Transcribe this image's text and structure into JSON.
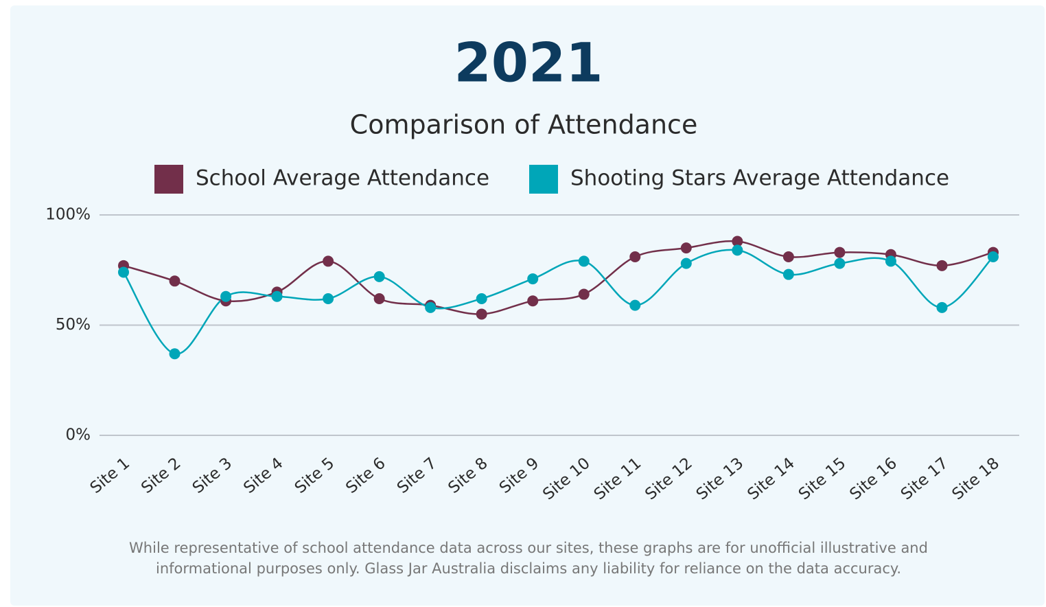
{
  "chart_data": {
    "type": "line",
    "title": "2021",
    "subtitle": "Comparison of Attendance",
    "categories": [
      "Site 1",
      "Site 2",
      "Site 3",
      "Site 4",
      "Site 5",
      "Site 6",
      "Site 7",
      "Site 8",
      "Site 9",
      "Site 10",
      "Site 11",
      "Site 12",
      "Site 13",
      "Site 14",
      "Site 15",
      "Site 16",
      "Site 17",
      "Site 18"
    ],
    "series": [
      {
        "name": "School Average Attendance",
        "color": "#722f4a",
        "values": [
          77,
          70,
          61,
          65,
          79,
          62,
          59,
          55,
          61,
          64,
          81,
          85,
          88,
          81,
          83,
          82,
          77,
          83
        ]
      },
      {
        "name": "Shooting Stars Average Attendance",
        "color": "#00a6b8",
        "values": [
          74,
          37,
          63,
          63,
          62,
          72,
          58,
          62,
          71,
          79,
          59,
          78,
          84,
          73,
          78,
          79,
          58,
          81
        ]
      }
    ],
    "ylim": [
      0,
      100
    ],
    "yticks": [
      {
        "value": 0,
        "label": "0%"
      },
      {
        "value": 50,
        "label": "50%"
      },
      {
        "value": 100,
        "label": "100%"
      }
    ],
    "grid": true,
    "legend": "top",
    "footnote": [
      "While representative of school attendance data across our sites, these graphs are for unofficial illustrative and",
      "informational purposes only. Glass Jar Australia disclaims any liability for reliance on the data accuracy."
    ]
  }
}
